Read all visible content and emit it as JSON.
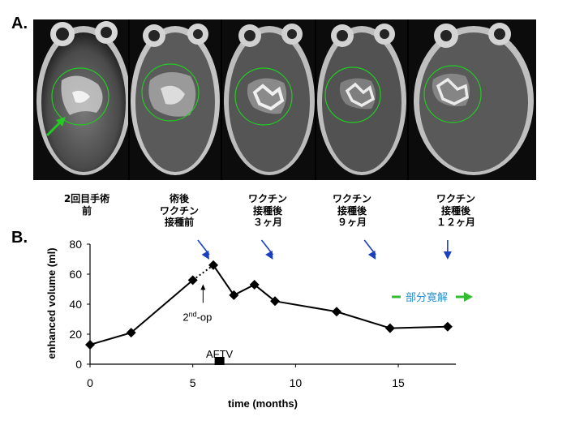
{
  "panels": {
    "a": "A.",
    "b": "B."
  },
  "captions": [
    [
      "2回目手術",
      "前"
    ],
    [
      "術後",
      "ワクチン",
      "接種前"
    ],
    [
      "ワクチン",
      "接種後",
      "３ヶ月"
    ],
    [
      "ワクチン",
      "接種後",
      "９ヶ月"
    ],
    [
      "ワクチン",
      "接種後",
      "１２ヶ月"
    ]
  ],
  "colors": {
    "marker": "#000000",
    "highlight": "#22cc22",
    "annotation_arrow": "#1a3fbf",
    "response_text": "#2a8fd0",
    "response_arrow": "#33bb33"
  },
  "chart_data": {
    "type": "line",
    "xlabel": "time (months)",
    "ylabel": "enhanced volume (ml)",
    "xlim": [
      0,
      17.8
    ],
    "ylim": [
      0,
      80
    ],
    "x_ticks": [
      0,
      5,
      10,
      15
    ],
    "y_ticks": [
      0,
      20,
      40,
      60,
      80
    ],
    "series": [
      {
        "values_x": [
          0,
          2,
          5,
          6,
          7,
          8,
          9,
          12,
          14.6,
          17.4
        ],
        "values_y": [
          13,
          21,
          56,
          66,
          46,
          53,
          42,
          35,
          24,
          25
        ]
      }
    ],
    "dotted_segment_between": [
      5,
      6
    ],
    "annotations": {
      "second_op": {
        "base": "2",
        "sup": "nd",
        "suffix": "-op",
        "x": 5.5,
        "y": 56
      },
      "aftv": {
        "text": "AFTV",
        "x": 6.3
      },
      "response": "部分寛解",
      "vaccine_arrows_x": [
        5.8,
        8.9,
        13.9,
        17.4
      ]
    }
  }
}
